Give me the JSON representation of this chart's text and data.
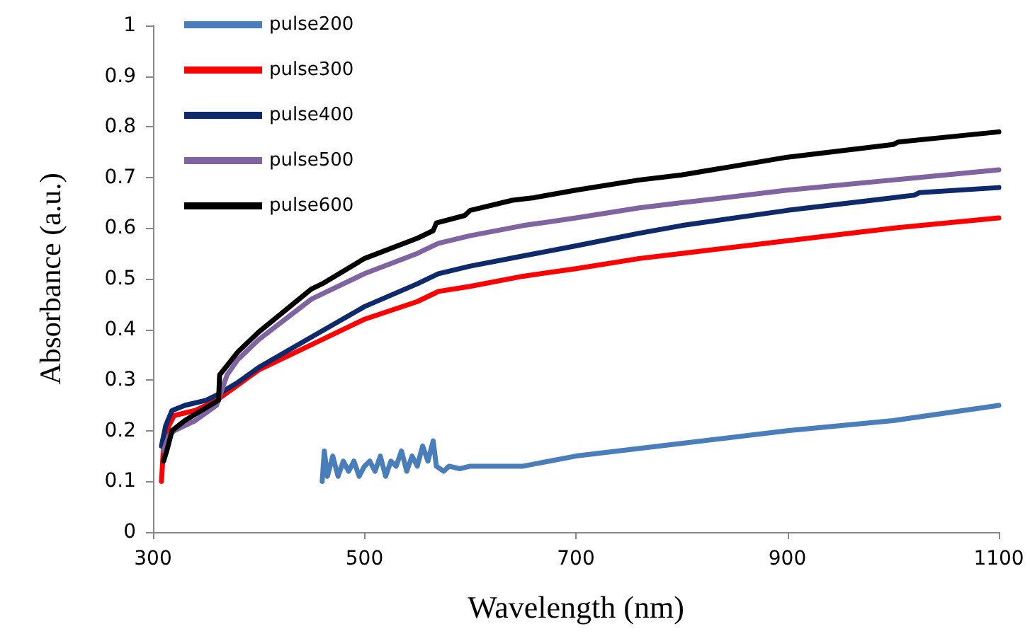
{
  "chart_data": {
    "type": "line",
    "xlabel": "Wavelength (nm)",
    "ylabel": "Absorbance (a.u.)",
    "xlim": [
      300,
      1100
    ],
    "xticks": [
      300,
      500,
      700,
      900,
      1100
    ],
    "ylim": [
      0,
      1
    ],
    "yticks": [
      0,
      0.1,
      0.2,
      0.3,
      0.4,
      0.5,
      0.6,
      0.7,
      0.8,
      0.9,
      1
    ],
    "grid": false,
    "legend": "top left",
    "marker": "none",
    "line_style": "solid",
    "series": [
      {
        "name": "pulse200",
        "color": "#4a7ebb",
        "x": [
          460,
          462,
          465,
          470,
          475,
          480,
          485,
          490,
          495,
          500,
          505,
          510,
          515,
          520,
          525,
          530,
          535,
          540,
          545,
          550,
          555,
          560,
          565,
          568,
          575,
          580,
          590,
          600,
          650,
          700,
          780,
          900,
          1000,
          1100
        ],
        "values": [
          0.1,
          0.16,
          0.11,
          0.15,
          0.11,
          0.14,
          0.12,
          0.14,
          0.11,
          0.13,
          0.14,
          0.12,
          0.15,
          0.11,
          0.14,
          0.13,
          0.16,
          0.12,
          0.15,
          0.13,
          0.17,
          0.14,
          0.18,
          0.13,
          0.12,
          0.13,
          0.125,
          0.13,
          0.13,
          0.15,
          0.17,
          0.2,
          0.22,
          0.25
        ]
      },
      {
        "name": "pulse300",
        "color": "#ff0000",
        "x": [
          308,
          310,
          315,
          320,
          330,
          340,
          360,
          380,
          400,
          450,
          500,
          550,
          565,
          570,
          600,
          650,
          700,
          760,
          800,
          900,
          1000,
          1100
        ],
        "values": [
          0.1,
          0.17,
          0.21,
          0.23,
          0.235,
          0.24,
          0.26,
          0.29,
          0.32,
          0.37,
          0.42,
          0.455,
          0.47,
          0.475,
          0.485,
          0.505,
          0.52,
          0.54,
          0.55,
          0.575,
          0.6,
          0.62
        ]
      },
      {
        "name": "pulse400",
        "color": "#0e2a6b",
        "x": [
          308,
          312,
          318,
          330,
          350,
          360,
          380,
          400,
          450,
          500,
          550,
          565,
          570,
          600,
          650,
          700,
          760,
          800,
          900,
          1000,
          1020,
          1025,
          1100
        ],
        "values": [
          0.17,
          0.21,
          0.24,
          0.25,
          0.26,
          0.27,
          0.295,
          0.325,
          0.385,
          0.445,
          0.49,
          0.505,
          0.51,
          0.525,
          0.545,
          0.565,
          0.59,
          0.605,
          0.635,
          0.66,
          0.665,
          0.67,
          0.68
        ]
      },
      {
        "name": "pulse500",
        "color": "#8064a2",
        "x": [
          310,
          315,
          320,
          340,
          360,
          365,
          370,
          380,
          400,
          450,
          500,
          550,
          565,
          570,
          600,
          650,
          700,
          760,
          800,
          900,
          1000,
          1100
        ],
        "values": [
          0.16,
          0.19,
          0.2,
          0.22,
          0.25,
          0.28,
          0.31,
          0.34,
          0.38,
          0.46,
          0.51,
          0.55,
          0.565,
          0.57,
          0.585,
          0.605,
          0.62,
          0.64,
          0.65,
          0.675,
          0.695,
          0.715
        ]
      },
      {
        "name": "pulse600",
        "color": "#000000",
        "x": [
          310,
          313,
          318,
          330,
          350,
          362,
          363,
          380,
          400,
          450,
          460,
          500,
          550,
          565,
          568,
          595,
          600,
          640,
          660,
          700,
          760,
          800,
          900,
          1000,
          1005,
          1100
        ],
        "values": [
          0.14,
          0.16,
          0.2,
          0.22,
          0.245,
          0.26,
          0.31,
          0.355,
          0.395,
          0.48,
          0.49,
          0.54,
          0.58,
          0.595,
          0.61,
          0.625,
          0.635,
          0.655,
          0.66,
          0.675,
          0.695,
          0.705,
          0.74,
          0.765,
          0.77,
          0.79
        ]
      }
    ]
  }
}
